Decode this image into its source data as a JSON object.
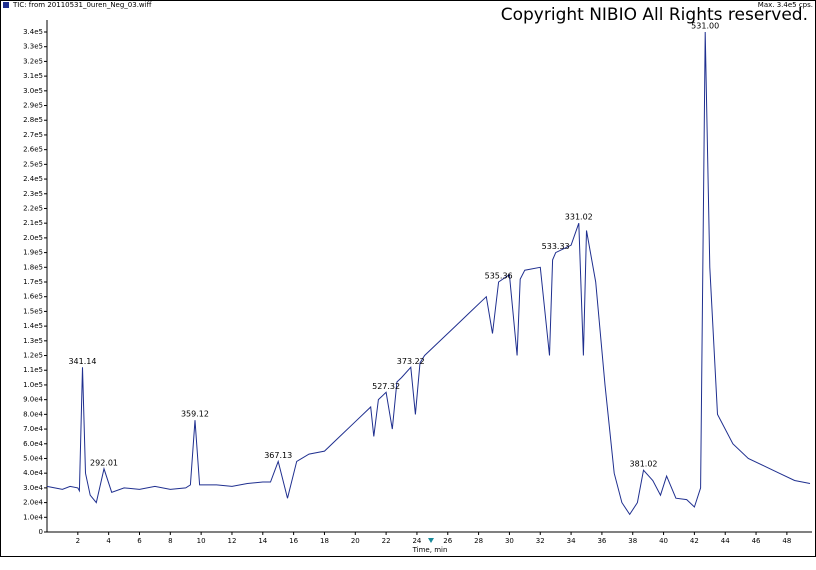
{
  "chart_data": {
    "type": "line",
    "title": "TIC: from 20110531_0uren_Neg_03.wiff",
    "subtitle": "Max. 3.4e5 cps.",
    "watermark": "Copyright NIBIO All Rights reserved.",
    "x_label": "Time, min",
    "x": [
      0,
      0.5,
      1,
      1.5,
      2,
      2.1,
      2.3,
      2.5,
      2.8,
      3.2,
      3.7,
      4.2,
      5,
      6,
      7,
      8,
      9,
      9.3,
      9.6,
      9.9,
      11,
      12,
      13,
      14,
      14.5,
      15,
      15.6,
      16.2,
      17,
      18,
      19,
      20,
      21,
      21.2,
      21.5,
      22,
      22.4,
      22.7,
      23,
      23.6,
      23.9,
      24.2,
      24.5,
      25.5,
      26.5,
      27.5,
      28.5,
      28.9,
      29.3,
      30,
      30.5,
      30.7,
      31,
      32,
      32.6,
      32.8,
      33,
      34,
      34.5,
      34.8,
      35,
      35.6,
      36.2,
      36.8,
      37.3,
      37.8,
      38.3,
      38.7,
      39.3,
      39.8,
      40.2,
      40.8,
      41.5,
      42,
      42.4,
      42.7,
      43,
      43.5,
      44.5,
      45.5,
      46.5,
      47.5,
      48.5,
      49.5
    ],
    "series": [
      {
        "name": "TIC",
        "color": "#1f2f8f",
        "values": [
          31000,
          30000,
          29000,
          31000,
          30000,
          28000,
          112000,
          40000,
          25000,
          20000,
          43000,
          27000,
          30000,
          29000,
          31000,
          29000,
          30000,
          32000,
          76000,
          32000,
          32000,
          31000,
          33000,
          34000,
          34000,
          48000,
          23000,
          48000,
          53000,
          55000,
          65000,
          75000,
          85000,
          65000,
          90000,
          95000,
          70000,
          102000,
          105000,
          112000,
          80000,
          115000,
          120000,
          130000,
          140000,
          150000,
          160000,
          135000,
          170000,
          175000,
          120000,
          172000,
          178000,
          180000,
          120000,
          185000,
          190000,
          195000,
          210000,
          120000,
          205000,
          170000,
          100000,
          40000,
          20000,
          12000,
          20000,
          42000,
          35000,
          25000,
          38000,
          23000,
          22000,
          17000,
          30000,
          340000,
          180000,
          80000,
          60000,
          50000,
          45000,
          40000,
          35000,
          33000
        ]
      }
    ],
    "annotations": [
      {
        "text": "341.14",
        "x": 2.3,
        "y": 112000
      },
      {
        "text": "292.01",
        "x": 3.7,
        "y": 43000
      },
      {
        "text": "359.12",
        "x": 9.6,
        "y": 76000
      },
      {
        "text": "367.13",
        "x": 15.0,
        "y": 48000
      },
      {
        "text": "527.32",
        "x": 22.0,
        "y": 95000
      },
      {
        "text": "373.22",
        "x": 23.6,
        "y": 112000
      },
      {
        "text": "535.36",
        "x": 29.3,
        "y": 170000
      },
      {
        "text": "533.33",
        "x": 33.0,
        "y": 190000
      },
      {
        "text": "331.02",
        "x": 34.5,
        "y": 210000
      },
      {
        "text": "381.02",
        "x": 38.7,
        "y": 42000
      },
      {
        "text": "531.00",
        "x": 42.7,
        "y": 340000
      }
    ],
    "xlim": [
      0,
      49.5
    ],
    "ylim": [
      0,
      340000
    ],
    "xticks": [
      2,
      4,
      6,
      8,
      10,
      12,
      14,
      16,
      18,
      20,
      22,
      24,
      26,
      28,
      30,
      32,
      34,
      36,
      38,
      40,
      42,
      44,
      46,
      48
    ],
    "yticks": [
      0,
      {
        "value": 10000,
        "label": "1.0e4"
      },
      {
        "value": 20000,
        "label": "2.0e4"
      },
      {
        "value": 30000,
        "label": "3.0e4"
      },
      {
        "value": 40000,
        "label": "4.0e4"
      },
      {
        "value": 50000,
        "label": "5.0e4"
      },
      {
        "value": 60000,
        "label": "6.0e4"
      },
      {
        "value": 70000,
        "label": "7.0e4"
      },
      {
        "value": 80000,
        "label": "8.0e4"
      },
      {
        "value": 90000,
        "label": "9.0e4"
      },
      {
        "value": 100000,
        "label": "1.0e5"
      },
      {
        "value": 110000,
        "label": "1.1e5"
      },
      {
        "value": 120000,
        "label": "1.2e5"
      },
      {
        "value": 130000,
        "label": "1.3e5"
      },
      {
        "value": 140000,
        "label": "1.4e5"
      },
      {
        "value": 150000,
        "label": "1.5e5"
      },
      {
        "value": 160000,
        "label": "1.6e5"
      },
      {
        "value": 170000,
        "label": "1.7e5"
      },
      {
        "value": 180000,
        "label": "1.8e5"
      },
      {
        "value": 190000,
        "label": "1.9e5"
      },
      {
        "value": 200000,
        "label": "2.0e5"
      },
      {
        "value": 210000,
        "label": "2.1e5"
      },
      {
        "value": 220000,
        "label": "2.2e5"
      },
      {
        "value": 230000,
        "label": "2.3e5"
      },
      {
        "value": 240000,
        "label": "2.4e5"
      },
      {
        "value": 250000,
        "label": "2.5e5"
      },
      {
        "value": 260000,
        "label": "2.6e5"
      },
      {
        "value": 270000,
        "label": "2.7e5"
      },
      {
        "value": 280000,
        "label": "2.8e5"
      },
      {
        "value": 290000,
        "label": "2.9e5"
      },
      {
        "value": 300000,
        "label": "3.0e5"
      },
      {
        "value": 310000,
        "label": "3.1e5"
      },
      {
        "value": 320000,
        "label": "3.2e5"
      },
      {
        "value": 330000,
        "label": "3.3e5"
      },
      {
        "value": 340000,
        "label": "3.4e5"
      }
    ],
    "grid": false
  }
}
